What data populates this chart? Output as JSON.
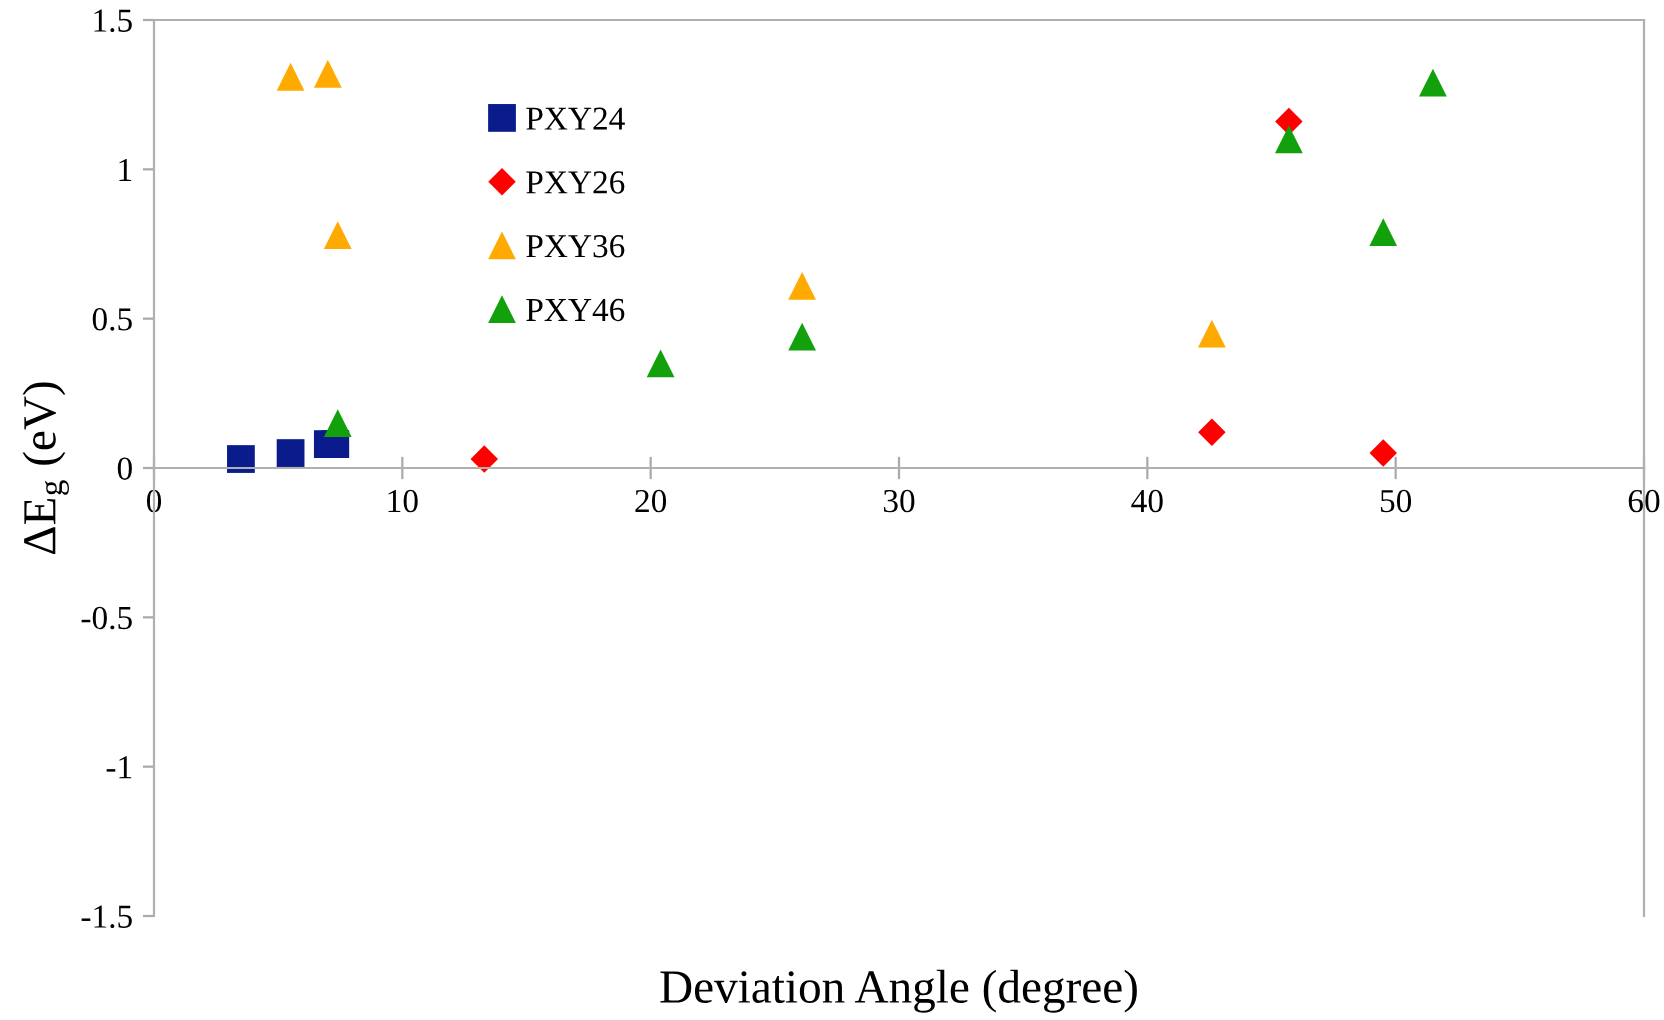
{
  "chart_data": {
    "type": "scatter",
    "xlabel": "Deviation Angle (degree)",
    "ylabel": "ΔE$_{g}$ (eV)",
    "xlim": [
      0,
      60
    ],
    "xticks": [
      0,
      10,
      20,
      30,
      40,
      50,
      60
    ],
    "ylim": [
      -1.5,
      1.5
    ],
    "yticks": [
      {
        "value": -1.5,
        "label": "-1.5"
      },
      {
        "value": -1,
        "label": "-1"
      },
      {
        "value": -0.5,
        "label": "-0.5"
      },
      0,
      0.5,
      1,
      1.5
    ],
    "grid": false,
    "legend": "left",
    "series": [
      {
        "name": "PXY24",
        "color": "#0a1c8c",
        "marker": "square",
        "x": [
          3.5,
          5.5,
          7.0,
          7.3
        ],
        "values": [
          0.03,
          0.05,
          0.08,
          0.08
        ]
      },
      {
        "name": "PXY26",
        "color": "#ff0000",
        "marker": "diamond",
        "x": [
          13.3,
          42.6,
          45.7,
          49.5
        ],
        "values": [
          0.03,
          0.12,
          1.16,
          0.05
        ]
      },
      {
        "name": "PXY36",
        "color": "#ffaa00",
        "marker": "triangle",
        "x": [
          5.5,
          7.0,
          7.4,
          26.1,
          42.6
        ],
        "values": [
          1.31,
          1.32,
          0.78,
          0.61,
          0.45
        ]
      },
      {
        "name": "PXY46",
        "color": "#13a00d",
        "marker": "triangle",
        "x": [
          7.4,
          20.4,
          26.1,
          45.7,
          49.5,
          51.5
        ],
        "values": [
          0.15,
          0.35,
          0.44,
          1.1,
          0.79,
          1.29
        ]
      }
    ]
  }
}
